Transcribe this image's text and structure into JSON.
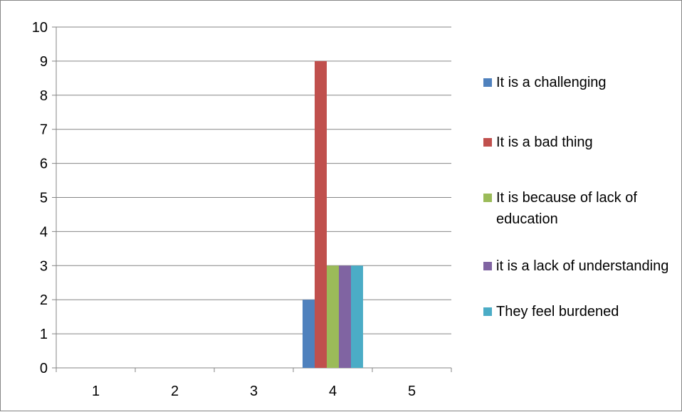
{
  "chart_data": {
    "type": "bar",
    "categories": [
      "1",
      "2",
      "3",
      "4",
      "5"
    ],
    "series": [
      {
        "name": "It is a challenging",
        "color": "#4F81BD",
        "values": [
          0,
          0,
          0,
          2,
          0
        ]
      },
      {
        "name": "It is a bad thing",
        "color": "#C0504D",
        "values": [
          0,
          0,
          0,
          9,
          0
        ]
      },
      {
        "name": "It is because of lack of education",
        "color": "#9BBB59",
        "values": [
          0,
          0,
          0,
          3,
          0
        ]
      },
      {
        "name": "it is a lack of understanding",
        "color": "#8064A2",
        "values": [
          0,
          0,
          0,
          3,
          0
        ]
      },
      {
        "name": "They feel burdened",
        "color": "#4BACC6",
        "values": [
          0,
          0,
          0,
          3,
          0
        ]
      }
    ],
    "ylim": [
      0,
      10
    ],
    "yticks": [
      "0",
      "1",
      "2",
      "3",
      "4",
      "5",
      "6",
      "7",
      "8",
      "9",
      "10"
    ],
    "title": "",
    "xlabel": "",
    "ylabel": "",
    "grid": true,
    "legend_position": "right"
  }
}
